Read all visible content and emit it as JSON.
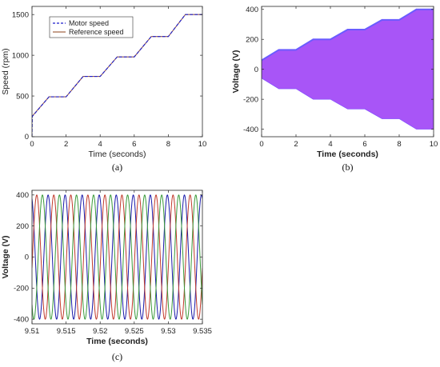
{
  "chart_data": [
    {
      "id": "a",
      "type": "line",
      "caption": "(a)",
      "xlabel": "Time (seconds)",
      "ylabel": "Speed (rpm)",
      "xlim": [
        0,
        10
      ],
      "ylim": [
        0,
        1600
      ],
      "xticks": [
        0,
        2,
        4,
        6,
        8,
        10
      ],
      "yticks": [
        0,
        500,
        1000,
        1500
      ],
      "grid": false,
      "legend": {
        "position": "top-left"
      },
      "series": [
        {
          "name": "Motor speed",
          "color": "#1f1fcc",
          "style": "dashed",
          "x": [
            0,
            0.02,
            1,
            2,
            3,
            4,
            5,
            6,
            7,
            8,
            9,
            10
          ],
          "y": [
            0,
            250,
            490,
            490,
            740,
            740,
            980,
            980,
            1230,
            1230,
            1500,
            1500
          ]
        },
        {
          "name": "Reference speed",
          "color": "#a06040",
          "style": "solid",
          "x": [
            0,
            0,
            1,
            2,
            3,
            4,
            5,
            6,
            7,
            8,
            9,
            10
          ],
          "y": [
            250,
            250,
            490,
            490,
            740,
            740,
            980,
            980,
            1230,
            1230,
            1500,
            1500
          ]
        }
      ]
    },
    {
      "id": "b",
      "type": "area",
      "caption": "(b)",
      "xlabel": "Time (seconds)",
      "ylabel": "Voltage (V)",
      "xlim": [
        0,
        10
      ],
      "ylim": [
        -450,
        420
      ],
      "xticks": [
        0,
        2,
        4,
        6,
        8,
        10
      ],
      "yticks": [
        -400,
        -200,
        0,
        200,
        400
      ],
      "grid": false,
      "envelope": {
        "x": [
          0,
          1,
          2,
          3,
          4,
          5,
          6,
          7,
          8,
          9,
          10
        ],
        "amplitude": [
          60,
          130,
          130,
          200,
          200,
          265,
          265,
          330,
          330,
          400,
          400
        ]
      },
      "color": "#a855f7"
    },
    {
      "id": "c",
      "type": "line",
      "caption": "(c)",
      "xlabel": "Time (seconds)",
      "ylabel": "Voltage (V)",
      "xlim": [
        9.51,
        9.535
      ],
      "ylim": [
        -430,
        430
      ],
      "xticks": [
        9.51,
        9.515,
        9.52,
        9.525,
        9.53,
        9.535
      ],
      "yticks": [
        -400,
        -200,
        0,
        200,
        400
      ],
      "grid": false,
      "amplitude": 400,
      "frequency_hz": 400,
      "series": [
        {
          "color": "#1a1aaa",
          "phase_deg": 110
        },
        {
          "color": "#c0392b",
          "phase_deg": -10
        },
        {
          "color": "#3a9a3a",
          "phase_deg": 230
        }
      ]
    }
  ]
}
